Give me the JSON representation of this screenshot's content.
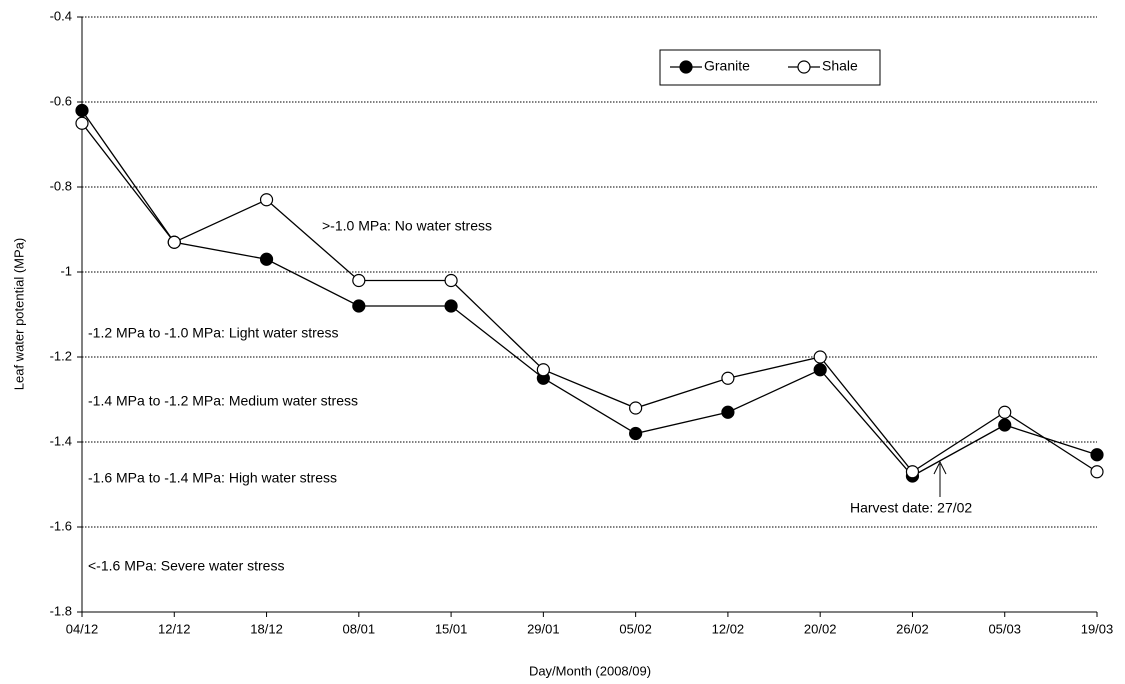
{
  "chart_data": {
    "type": "line",
    "y_label": "Leaf water potential (MPa)",
    "x_label": "Day/Month (2008/09)",
    "categories": [
      "04/12",
      "12/12",
      "18/12",
      "08/01",
      "15/01",
      "29/01",
      "05/02",
      "12/02",
      "20/02",
      "26/02",
      "05/03",
      "19/03"
    ],
    "series": [
      {
        "name": "Granite",
        "color": "#000000",
        "marker": "filled",
        "values": [
          -0.62,
          -0.93,
          -0.97,
          -1.08,
          -1.08,
          -1.25,
          -1.38,
          -1.33,
          -1.23,
          -1.48,
          -1.36,
          -1.43
        ]
      },
      {
        "name": "Shale",
        "color": "#000000",
        "marker": "open",
        "values": [
          -0.65,
          -0.93,
          -0.83,
          -1.02,
          -1.02,
          -1.23,
          -1.32,
          -1.25,
          -1.2,
          -1.47,
          -1.33,
          -1.47
        ]
      }
    ],
    "ylim": [
      -1.8,
      -0.4
    ],
    "yticks": [
      -1.8,
      -1.6,
      -1.4,
      -1.2,
      -1.0,
      -0.8,
      -0.6,
      -0.4
    ],
    "grid": true,
    "legend": "top-right",
    "annotations": [
      ">-1.0 MPa: No water stress",
      "-1.2 MPa to -1.0 MPa: Light water stress",
      "-1.4 MPa to -1.2 MPa: Medium water stress",
      "-1.6 MPa to -1.4 MPa: High water stress",
      "<-1.6 MPa: Severe water stress",
      "Harvest date: 27/02"
    ]
  }
}
